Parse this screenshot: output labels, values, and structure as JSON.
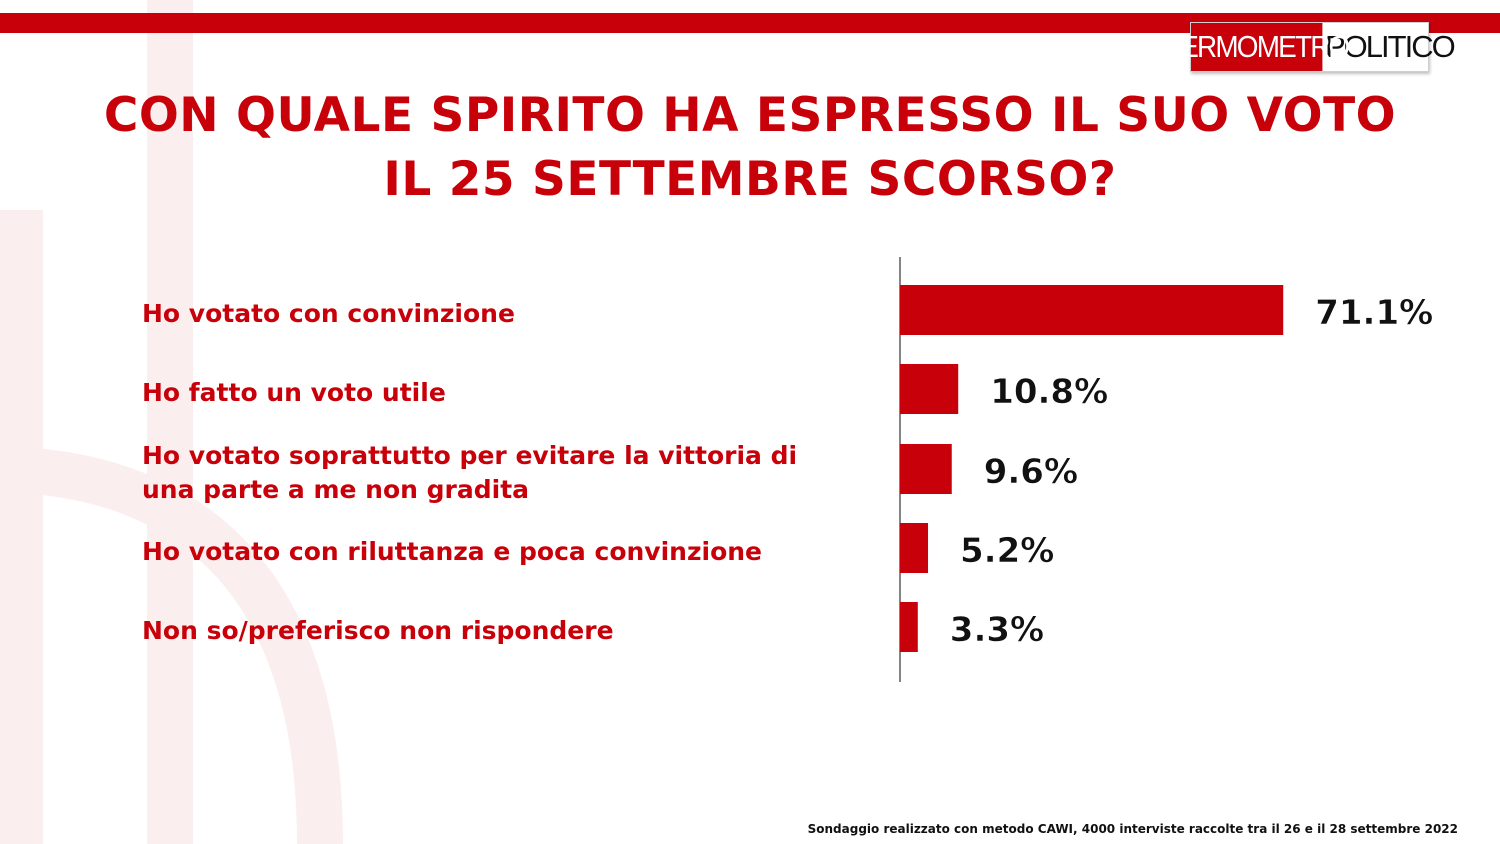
{
  "logo": {
    "part1": "TERMOMETRO",
    "part2": "POLITICO"
  },
  "title": {
    "line1": "CON QUALE SPIRITO HA ESPRESSO IL SUO VOTO",
    "line2": "IL 25 SETTEMBRE SCORSO?"
  },
  "chart_data": {
    "type": "bar",
    "orientation": "horizontal",
    "title": "CON QUALE SPIRITO HA ESPRESSO IL SUO VOTO IL 25 SETTEMBRE SCORSO?",
    "categories": [
      "Ho votato con convinzione",
      "Ho fatto un voto utile",
      "Ho votato soprattutto per evitare la vittoria di una parte a me non gradita",
      "Ho votato con riluttanza e poca convinzione",
      "Non so/preferisco non rispondere"
    ],
    "category_lines": [
      [
        "Ho votato con convinzione"
      ],
      [
        "Ho fatto un voto utile"
      ],
      [
        "Ho votato soprattutto per evitare la vittoria di",
        "una parte a me non gradita"
      ],
      [
        "Ho votato con riluttanza e poca convinzione"
      ],
      [
        "Non so/preferisco non rispondere"
      ]
    ],
    "values": [
      71.1,
      10.8,
      9.6,
      5.2,
      3.3
    ],
    "value_labels": [
      "71.1%",
      "10.8%",
      "9.6%",
      "5.2%",
      "3.3%"
    ],
    "unit": "%",
    "color": "#c8000a",
    "grid": false
  },
  "footnote": "Sondaggio realizzato con metodo CAWI, 4000 interviste raccolte tra il 26 e il 28 settembre 2022"
}
